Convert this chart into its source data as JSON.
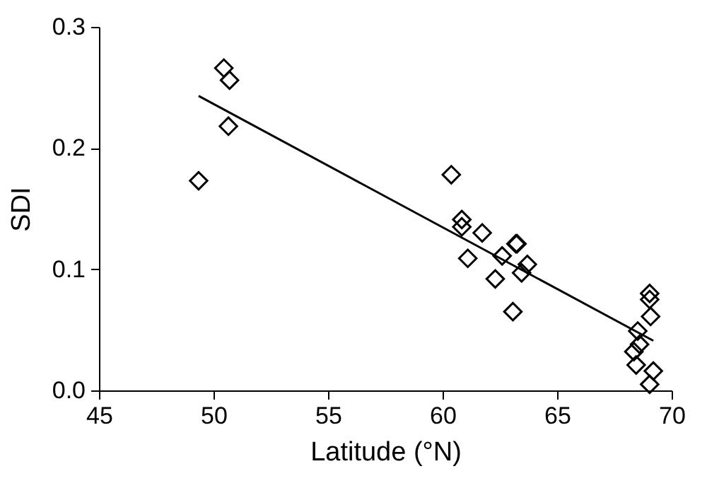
{
  "chart_data": {
    "type": "scatter",
    "xlabel": "Latitude (°N)",
    "ylabel": "SDI",
    "xlim": [
      45,
      70
    ],
    "ylim": [
      0,
      0.3
    ],
    "xticks": [
      45,
      50,
      55,
      60,
      65,
      70
    ],
    "yticks": [
      {
        "value": 0,
        "label": "0.0"
      },
      {
        "value": 0.1,
        "label": "0.1"
      },
      {
        "value": 0.2,
        "label": "0.2"
      },
      {
        "value": 0.3,
        "label": "0.3"
      }
    ],
    "grid": false,
    "series": [
      {
        "color": "#000000",
        "marker": "diamond",
        "x": [
          49.35,
          50.45,
          50.7,
          50.65,
          60.38,
          60.84,
          60.84,
          61.73,
          61.1,
          62.3,
          62.6,
          63.2,
          63.25,
          63.7,
          63.45,
          63.07,
          69.04,
          69.04,
          69.08,
          68.52,
          68.6,
          68.35,
          68.45,
          69.2,
          69.04
        ],
        "values": [
          0.173,
          0.266,
          0.256,
          0.218,
          0.178,
          0.141,
          0.135,
          0.13,
          0.109,
          0.092,
          0.111,
          0.121,
          0.121,
          0.104,
          0.097,
          0.065,
          0.08,
          0.075,
          0.061,
          0.049,
          0.038,
          0.032,
          0.021,
          0.016,
          0.005
        ]
      },
      {
        "type": "line",
        "color": "#000000",
        "line_style": "solid",
        "x": [
          49.35,
          69.2
        ],
        "values": [
          0.243,
          0.041
        ]
      }
    ]
  }
}
